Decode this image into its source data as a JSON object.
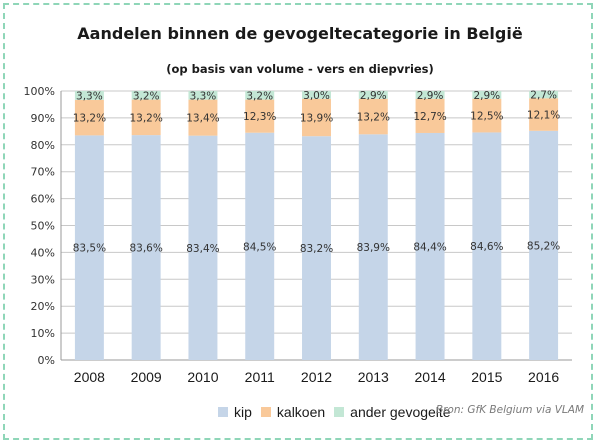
{
  "chart_data": {
    "type": "bar",
    "stacked": true,
    "title": "Aandelen binnen de gevogeltecategorie in België",
    "subtitle": "(op basis van volume - vers en diepvries)",
    "categories": [
      "2008",
      "2009",
      "2010",
      "2011",
      "2012",
      "2013",
      "2014",
      "2015",
      "2016"
    ],
    "series": [
      {
        "name": "kip",
        "color": "#c5d5e8",
        "values": [
          83.5,
          83.6,
          83.4,
          84.5,
          83.2,
          83.9,
          84.4,
          84.6,
          85.2
        ],
        "labels": [
          "83,5%",
          "83,6%",
          "83,4%",
          "84,5%",
          "83,2%",
          "83,9%",
          "84,4%",
          "84,6%",
          "85,2%"
        ]
      },
      {
        "name": "kalkoen",
        "color": "#f9c99a",
        "values": [
          13.2,
          13.2,
          13.4,
          12.3,
          13.9,
          13.2,
          12.7,
          12.5,
          12.1
        ],
        "labels": [
          "13,2%",
          "13,2%",
          "13,4%",
          "12,3%",
          "13,9%",
          "13,2%",
          "12,7%",
          "12,5%",
          "12,1%"
        ]
      },
      {
        "name": "ander gevogelte",
        "color": "#c3e7d5",
        "values": [
          3.3,
          3.2,
          3.3,
          3.2,
          3.0,
          2.9,
          2.9,
          2.9,
          2.7
        ],
        "labels": [
          "3,3%",
          "3,2%",
          "3,3%",
          "3,2%",
          "3,0%",
          "2,9%",
          "2,9%",
          "2,9%",
          "2,7%"
        ]
      }
    ],
    "ylim": [
      0,
      100
    ],
    "yticks": [
      "0%",
      "10%",
      "20%",
      "30%",
      "40%",
      "50%",
      "60%",
      "70%",
      "80%",
      "90%",
      "100%"
    ],
    "grid": true,
    "legend": "bottom",
    "source": "Bron: GfK Belgium via VLAM"
  }
}
